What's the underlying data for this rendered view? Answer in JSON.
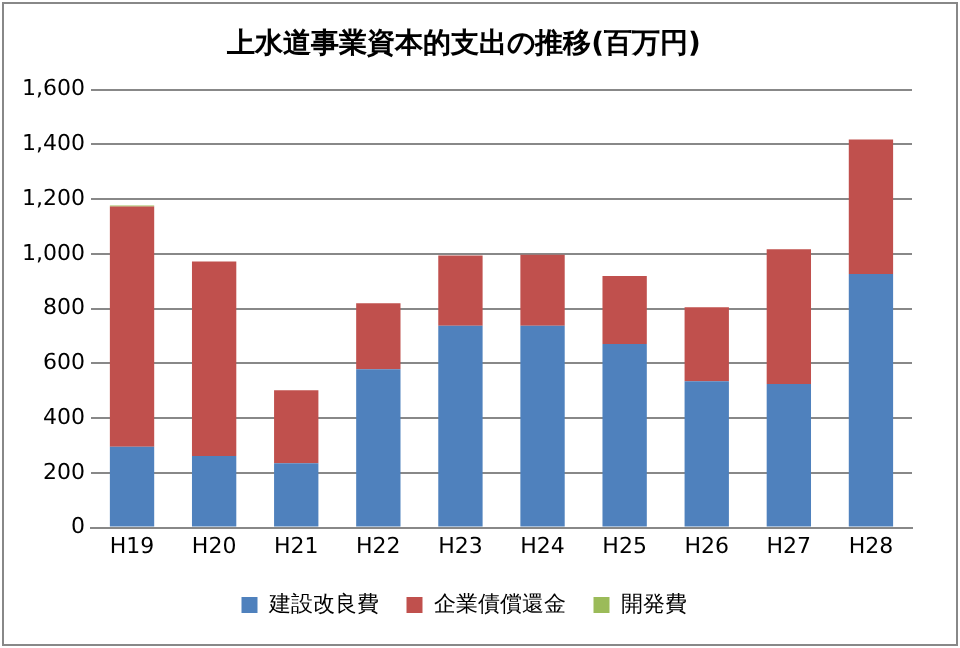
{
  "chart_data": {
    "type": "bar",
    "title": "上水道事業資本的支出の推移(百万円)",
    "categories": [
      "H19",
      "H20",
      "H21",
      "H22",
      "H23",
      "H24",
      "H25",
      "H26",
      "H27",
      "H28"
    ],
    "stacked": true,
    "series": [
      {
        "name": "建設改良費",
        "color": "#4f81bd",
        "values": [
          295,
          262,
          235,
          578,
          737,
          737,
          671,
          535,
          525,
          926
        ]
      },
      {
        "name": "企業債償還金",
        "color": "#c0504d",
        "values": [
          878,
          710,
          267,
          242,
          257,
          260,
          248,
          270,
          492,
          492
        ]
      },
      {
        "name": "開発費",
        "color": "#9bbb59",
        "values": [
          4,
          0,
          0,
          0,
          0,
          0,
          0,
          0,
          0,
          0
        ]
      }
    ],
    "ylim": [
      0,
      1600
    ],
    "yticks": [
      {
        "value": 0,
        "label": "0"
      },
      {
        "value": 200,
        "label": "200"
      },
      {
        "value": 400,
        "label": "400"
      },
      {
        "value": 600,
        "label": "600"
      },
      {
        "value": 800,
        "label": "800"
      },
      {
        "value": 1000,
        "label": "1,000"
      },
      {
        "value": 1200,
        "label": "1,200"
      },
      {
        "value": 1400,
        "label": "1,400"
      },
      {
        "value": 1600,
        "label": "1,600"
      }
    ],
    "grid": "y",
    "legend": "bottom"
  }
}
